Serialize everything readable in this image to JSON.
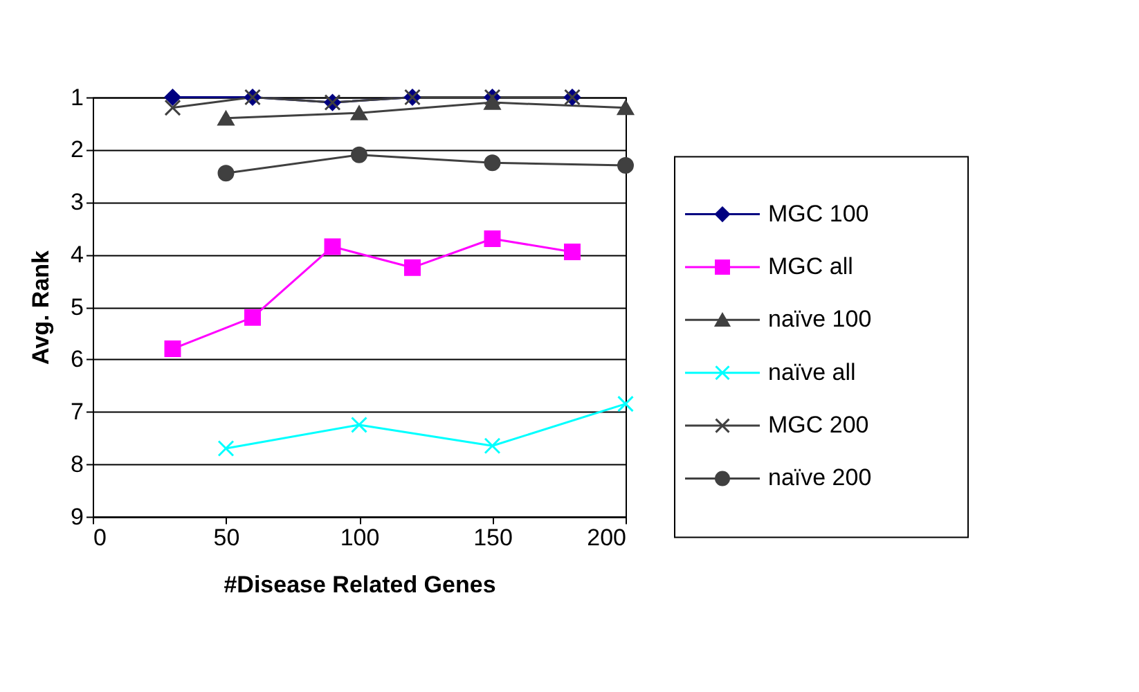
{
  "chart_data": {
    "type": "line",
    "xlabel": "#Disease Related Genes",
    "ylabel": "Avg. Rank",
    "xlim": [
      0,
      200
    ],
    "xticks": [
      0,
      50,
      100,
      150,
      200
    ],
    "ylim": [
      9,
      1
    ],
    "yticks": [
      1,
      2,
      3,
      4,
      5,
      6,
      7,
      8,
      9
    ],
    "grid": "y",
    "legend": "right",
    "series": [
      {
        "name": "MGC 100",
        "color": "#000080",
        "marker": "diamond",
        "x": [
          30,
          60,
          90,
          120,
          150,
          180
        ],
        "values": [
          1.0,
          1.0,
          1.1,
          1.0,
          1.0,
          1.0
        ]
      },
      {
        "name": "MGC all",
        "color": "#ff00ff",
        "marker": "square",
        "x": [
          30,
          60,
          90,
          120,
          150,
          180
        ],
        "values": [
          5.8,
          5.2,
          3.85,
          4.25,
          3.7,
          3.95
        ]
      },
      {
        "name": "naïve 100",
        "color": "#404040",
        "marker": "triangle",
        "x": [
          50,
          100,
          150,
          200
        ],
        "values": [
          1.4,
          1.3,
          1.1,
          1.2
        ]
      },
      {
        "name": "naïve all",
        "color": "#00ffff",
        "marker": "cross",
        "x": [
          50,
          100,
          150,
          200
        ],
        "values": [
          7.7,
          7.25,
          7.65,
          6.85
        ]
      },
      {
        "name": "MGC 200",
        "color": "#404040",
        "marker": "cross",
        "x": [
          30,
          60,
          90,
          120,
          150,
          180
        ],
        "values": [
          1.2,
          1.0,
          1.1,
          1.0,
          1.0,
          1.0
        ]
      },
      {
        "name": "naïve 200",
        "color": "#404040",
        "marker": "circle",
        "x": [
          50,
          100,
          150,
          200
        ],
        "values": [
          2.45,
          2.1,
          2.25,
          2.3
        ]
      }
    ]
  }
}
